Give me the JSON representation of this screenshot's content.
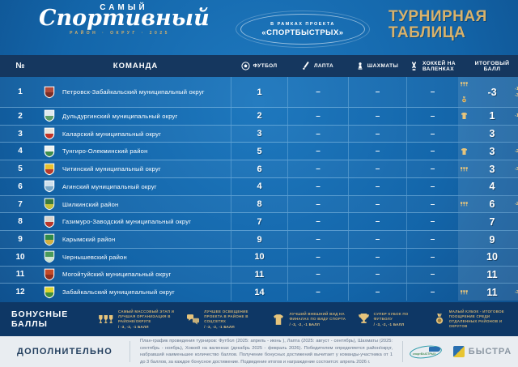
{
  "header": {
    "logo_top": "САМЫЙ",
    "logo_script": "Спортивный",
    "logo_sub": "РАЙОН · ОКРУГ · 2025",
    "project_line1": "В РАМКАХ ПРОЕКТА",
    "project_line2": "«СПОРТБЫСТРЫХ»",
    "title_line1": "ТУРНИРНАЯ",
    "title_line2": "ТАБЛИЦА"
  },
  "table": {
    "columns": {
      "num": "№",
      "team": "КОМАНДА",
      "football": "ФУТБОЛ",
      "lapta": "ЛАПТА",
      "chess": "ШАХМАТЫ",
      "hockey_l1": "ХОККЕЙ НА",
      "hockey_l2": "ВАЛЕНКАХ",
      "total_l1": "ИТОГОВЫЙ",
      "total_l2": "БАЛЛ"
    },
    "dash": "–",
    "rows": [
      {
        "num": "1",
        "team": "Петровск-Забайкальский муниципальный округ",
        "football": "1",
        "lapta": "–",
        "chess": "–",
        "hockey": "–",
        "total": "-3",
        "badges": [
          "trophies-icon",
          "medal-icon"
        ],
        "notes": [
          "-1",
          "-3"
        ],
        "emblem": {
          "c1": "#b04a3a",
          "c2": "#7a2e28"
        }
      },
      {
        "num": "2",
        "team": "Дульдургинский муниципальный округ",
        "football": "2",
        "lapta": "–",
        "chess": "–",
        "hockey": "–",
        "total": "1",
        "badges": [
          "tshirt-icon"
        ],
        "notes": [
          "-1"
        ],
        "emblem": {
          "c1": "#dfe9ee",
          "c2": "#5d9e6a"
        }
      },
      {
        "num": "3",
        "team": "Каларский муниципальный округ",
        "football": "3",
        "lapta": "–",
        "chess": "–",
        "hockey": "–",
        "total": "3",
        "badges": [],
        "notes": [],
        "emblem": {
          "c1": "#e8e4da",
          "c2": "#c03328"
        }
      },
      {
        "num": "4",
        "team": "Тунгиро-Олекминский район",
        "football": "5",
        "lapta": "–",
        "chess": "–",
        "hockey": "–",
        "total": "3",
        "badges": [
          "tshirt-icon"
        ],
        "notes": [
          "-2"
        ],
        "emblem": {
          "c1": "#eef2ee",
          "c2": "#3e8e4e"
        }
      },
      {
        "num": "5",
        "team": "Читинский муниципальный округ",
        "football": "6",
        "lapta": "–",
        "chess": "–",
        "hockey": "–",
        "total": "3",
        "badges": [
          "trophies-icon"
        ],
        "notes": [
          "-3"
        ],
        "emblem": {
          "c1": "#e8c12f",
          "c2": "#b5392f"
        }
      },
      {
        "num": "6",
        "team": "Агинский муниципальный округ",
        "football": "4",
        "lapta": "–",
        "chess": "–",
        "hockey": "–",
        "total": "4",
        "badges": [],
        "notes": [],
        "emblem": {
          "c1": "#cfe0ec",
          "c2": "#7aa8c8"
        }
      },
      {
        "num": "7",
        "team": "Шилкинский район",
        "football": "8",
        "lapta": "–",
        "chess": "–",
        "hockey": "–",
        "total": "6",
        "badges": [
          "trophies-icon"
        ],
        "notes": [
          "-2"
        ],
        "emblem": {
          "c1": "#3a7a3e",
          "c2": "#c8c23a"
        }
      },
      {
        "num": "8",
        "team": "Газимуро-Заводский муниципальный округ",
        "football": "7",
        "lapta": "–",
        "chess": "–",
        "hockey": "–",
        "total": "7",
        "badges": [],
        "notes": [],
        "emblem": {
          "c1": "#d9d4cc",
          "c2": "#b8372c"
        }
      },
      {
        "num": "9",
        "team": "Карымский район",
        "football": "9",
        "lapta": "–",
        "chess": "–",
        "hockey": "–",
        "total": "9",
        "badges": [],
        "notes": [],
        "emblem": {
          "c1": "#2f8a4a",
          "c2": "#d4b040"
        }
      },
      {
        "num": "10",
        "team": "Чернышевский район",
        "football": "10",
        "lapta": "–",
        "chess": "–",
        "hockey": "–",
        "total": "10",
        "badges": [],
        "notes": [],
        "emblem": {
          "c1": "#4a9a5a",
          "c2": "#cfe4d4"
        }
      },
      {
        "num": "11",
        "team": "Могойтуйский муниципальный округ",
        "football": "11",
        "lapta": "–",
        "chess": "–",
        "hockey": "–",
        "total": "11",
        "badges": [],
        "notes": [],
        "emblem": {
          "c1": "#c24a28",
          "c2": "#8f2f1e"
        }
      },
      {
        "num": "12",
        "team": "Забайкальский муниципальный округ",
        "football": "14",
        "lapta": "–",
        "chess": "–",
        "hockey": "–",
        "total": "11",
        "badges": [
          "trophies-icon"
        ],
        "notes": [
          "-3"
        ],
        "emblem": {
          "c1": "#ddd42f",
          "c2": "#3f8f3f"
        }
      }
    ]
  },
  "bonus": {
    "label_line1": "БОНУСНЫЕ",
    "label_line2": "БАЛЛЫ",
    "items": [
      {
        "icon": "trophies-icon",
        "text": "САМЫЙ МАССОВЫЙ ЭТАП И ЛУЧШАЯ ОРГАНИЗАЦИЯ В РАЙОНЕ/ОКРУГЕ",
        "points": "/ -3, -2, -1 БАЛЛ"
      },
      {
        "icon": "social-icon",
        "text": "ЛУЧШЕЕ ОСВЕЩЕНИЕ ПРОЕКТА В РАЙОНЕ В СОЦСЕТЯХ",
        "points": "/ -3, -2, -1 БАЛЛ"
      },
      {
        "icon": "tshirt-icon",
        "text": "ЛУЧШИЙ ВНЕШНИЙ ВИД НА ФИНАЛАХ ПО ВИДУ СПОРТА",
        "points": "/ -3, -2, -1 БАЛЛ"
      },
      {
        "icon": "trophy-icon",
        "text": "СУПЕР КУБОК ПО ФУТБОЛУ",
        "points": "/ -3, -2, -1 БАЛЛ"
      },
      {
        "icon": "medal-icon",
        "text": "МАЛЫЙ КУБОК - ИТОГОВОЕ ПООЩРЕНИЕ СРЕДИ ОТДАЛЕННЫХ РАЙОНОВ И ОКРУГОВ",
        "points": ""
      }
    ]
  },
  "footer": {
    "label": "ДОПОЛНИТЕЛЬНО",
    "text": "План-график проведения турниров: Футбол (2025: апрель - июнь ), Лапта (2025: август - сентябрь), Шахматы (2025: сентябрь - ноябрь), Хоккей на валенках (декабрь 2025 - февраль 2026). Победителем определяется район/округ, набравший наименьшее количество баллов. Получение бонусных достижений вычитает у команды-участника от 1 до 3 баллов, за каждое бонусное достижение. Подведение итогов и награждение состоится: апрель 2026 г.",
    "logo1": "спортБЫСТРЫХ",
    "logo2": "БЫСТРА"
  },
  "colors": {
    "accent_gold": "#d9b26b",
    "header_band": "#15375f",
    "bonus_band": "#0e3765",
    "page_blue": "#1365a9",
    "footer_bg": "#e9edf1"
  }
}
